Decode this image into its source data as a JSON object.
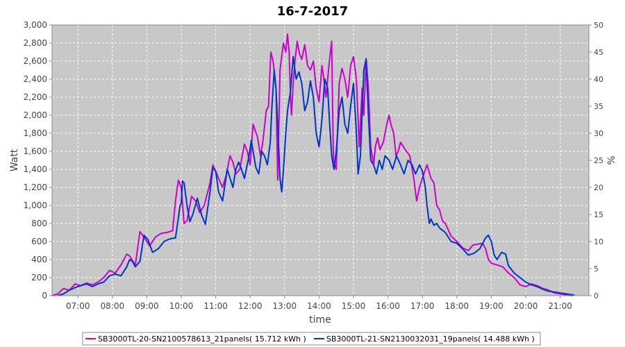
{
  "chart_data": {
    "type": "line",
    "title": "16-7-2017",
    "xlabel": "time",
    "ylabel": "Watt",
    "y2label": "%",
    "ylim": [
      0,
      3000
    ],
    "y2lim": [
      0,
      50
    ],
    "xlim": [
      "06:15",
      "21:50"
    ],
    "grid": true,
    "legend_position": "bottom",
    "x_ticks": [
      "07:00",
      "08:00",
      "09:00",
      "10:00",
      "11:00",
      "12:00",
      "13:00",
      "14:00",
      "15:00",
      "16:00",
      "17:00",
      "18:00",
      "19:00",
      "20:00",
      "21:00"
    ],
    "y_ticks": [
      "0",
      "200",
      "400",
      "600",
      "800",
      "1,000",
      "1,200",
      "1,400",
      "1,600",
      "1,800",
      "2,000",
      "2,200",
      "2,400",
      "2,600",
      "2,800",
      "3,000"
    ],
    "y2_ticks": [
      "0",
      "5",
      "10",
      "15",
      "20",
      "25",
      "30",
      "35",
      "40",
      "45",
      "50"
    ],
    "colors": {
      "plot_bg": "#c8c8c8",
      "grid": "#ffffff",
      "series1": "#cc00cc",
      "series2": "#0033cc"
    },
    "series": [
      {
        "name": "SB3000TL-20-SN2100578613_21panels( 15.712 kWh )",
        "color": "#cc00cc",
        "points": [
          [
            "06:15",
            0
          ],
          [
            "06:25",
            20
          ],
          [
            "06:35",
            80
          ],
          [
            "06:45",
            60
          ],
          [
            "06:55",
            130
          ],
          [
            "07:05",
            110
          ],
          [
            "07:15",
            140
          ],
          [
            "07:25",
            120
          ],
          [
            "07:35",
            150
          ],
          [
            "07:45",
            200
          ],
          [
            "07:55",
            280
          ],
          [
            "08:05",
            250
          ],
          [
            "08:15",
            340
          ],
          [
            "08:25",
            460
          ],
          [
            "08:30",
            440
          ],
          [
            "08:40",
            340
          ],
          [
            "08:48",
            710
          ],
          [
            "08:55",
            650
          ],
          [
            "09:05",
            550
          ],
          [
            "09:15",
            650
          ],
          [
            "09:25",
            690
          ],
          [
            "09:35",
            700
          ],
          [
            "09:45",
            720
          ],
          [
            "09:50",
            1050
          ],
          [
            "09:55",
            1280
          ],
          [
            "10:00",
            1200
          ],
          [
            "10:05",
            800
          ],
          [
            "10:10",
            830
          ],
          [
            "10:18",
            1100
          ],
          [
            "10:25",
            1050
          ],
          [
            "10:32",
            920
          ],
          [
            "10:40",
            1000
          ],
          [
            "10:50",
            1250
          ],
          [
            "10:55",
            1450
          ],
          [
            "11:00",
            1380
          ],
          [
            "11:05",
            1300
          ],
          [
            "11:12",
            1200
          ],
          [
            "11:18",
            1330
          ],
          [
            "11:25",
            1550
          ],
          [
            "11:30",
            1480
          ],
          [
            "11:35",
            1350
          ],
          [
            "11:42",
            1400
          ],
          [
            "11:50",
            1680
          ],
          [
            "11:55",
            1600
          ],
          [
            "12:00",
            1450
          ],
          [
            "12:05",
            1900
          ],
          [
            "12:08",
            1850
          ],
          [
            "12:13",
            1750
          ],
          [
            "12:18",
            1550
          ],
          [
            "12:22",
            1700
          ],
          [
            "12:28",
            2050
          ],
          [
            "12:32",
            2100
          ],
          [
            "12:36",
            2700
          ],
          [
            "12:40",
            2600
          ],
          [
            "12:45",
            2300
          ],
          [
            "12:48",
            1280
          ],
          [
            "12:52",
            2500
          ],
          [
            "12:58",
            2800
          ],
          [
            "13:02",
            2700
          ],
          [
            "13:05",
            2900
          ],
          [
            "13:08",
            2700
          ],
          [
            "13:10",
            2250
          ],
          [
            "13:12",
            2000
          ],
          [
            "13:15",
            2350
          ],
          [
            "13:18",
            2600
          ],
          [
            "13:22",
            2820
          ],
          [
            "13:26",
            2680
          ],
          [
            "13:30",
            2620
          ],
          [
            "13:35",
            2780
          ],
          [
            "13:40",
            2550
          ],
          [
            "13:45",
            2500
          ],
          [
            "13:50",
            2600
          ],
          [
            "13:55",
            2300
          ],
          [
            "14:00",
            2150
          ],
          [
            "14:05",
            2550
          ],
          [
            "14:08",
            2420
          ],
          [
            "14:12",
            2200
          ],
          [
            "14:18",
            2600
          ],
          [
            "14:22",
            2820
          ],
          [
            "14:25",
            1500
          ],
          [
            "14:30",
            1400
          ],
          [
            "14:35",
            2350
          ],
          [
            "14:40",
            2520
          ],
          [
            "14:45",
            2400
          ],
          [
            "14:50",
            2200
          ],
          [
            "14:55",
            2550
          ],
          [
            "15:00",
            2650
          ],
          [
            "15:05",
            2400
          ],
          [
            "15:10",
            1650
          ],
          [
            "15:15",
            2300
          ],
          [
            "15:18",
            2000
          ],
          [
            "15:22",
            2630
          ],
          [
            "15:26",
            2300
          ],
          [
            "15:30",
            1650
          ],
          [
            "15:35",
            1450
          ],
          [
            "15:38",
            1650
          ],
          [
            "15:42",
            1750
          ],
          [
            "15:46",
            1620
          ],
          [
            "15:52",
            1700
          ],
          [
            "15:58",
            1900
          ],
          [
            "16:02",
            2000
          ],
          [
            "16:05",
            1900
          ],
          [
            "16:10",
            1800
          ],
          [
            "16:14",
            1550
          ],
          [
            "16:18",
            1600
          ],
          [
            "16:22",
            1700
          ],
          [
            "16:30",
            1620
          ],
          [
            "16:38",
            1550
          ],
          [
            "16:45",
            1300
          ],
          [
            "16:50",
            1050
          ],
          [
            "16:55",
            1200
          ],
          [
            "17:00",
            1300
          ],
          [
            "17:08",
            1450
          ],
          [
            "17:15",
            1300
          ],
          [
            "17:20",
            1250
          ],
          [
            "17:25",
            1000
          ],
          [
            "17:30",
            950
          ],
          [
            "17:35",
            830
          ],
          [
            "17:40",
            800
          ],
          [
            "17:50",
            660
          ],
          [
            "18:00",
            600
          ],
          [
            "18:10",
            530
          ],
          [
            "18:20",
            500
          ],
          [
            "18:28",
            560
          ],
          [
            "18:35",
            570
          ],
          [
            "18:45",
            580
          ],
          [
            "18:50",
            520
          ],
          [
            "18:55",
            400
          ],
          [
            "19:00",
            360
          ],
          [
            "19:10",
            340
          ],
          [
            "19:20",
            320
          ],
          [
            "19:30",
            250
          ],
          [
            "19:40",
            200
          ],
          [
            "19:50",
            120
          ],
          [
            "20:00",
            100
          ],
          [
            "20:10",
            130
          ],
          [
            "20:20",
            110
          ],
          [
            "20:30",
            80
          ],
          [
            "20:40",
            60
          ],
          [
            "20:50",
            30
          ],
          [
            "21:00",
            20
          ],
          [
            "21:10",
            10
          ],
          [
            "21:20",
            0
          ]
        ]
      },
      {
        "name": "SB3000TL-21-SN2130032031_19panels( 14.488 kWh )",
        "color": "#0033cc",
        "points": [
          [
            "06:25",
            0
          ],
          [
            "06:35",
            20
          ],
          [
            "06:45",
            60
          ],
          [
            "06:55",
            90
          ],
          [
            "07:05",
            110
          ],
          [
            "07:15",
            130
          ],
          [
            "07:25",
            100
          ],
          [
            "07:35",
            130
          ],
          [
            "07:45",
            150
          ],
          [
            "07:55",
            220
          ],
          [
            "08:05",
            240
          ],
          [
            "08:15",
            220
          ],
          [
            "08:25",
            320
          ],
          [
            "08:30",
            400
          ],
          [
            "08:35",
            380
          ],
          [
            "08:40",
            320
          ],
          [
            "08:48",
            380
          ],
          [
            "08:55",
            670
          ],
          [
            "09:02",
            620
          ],
          [
            "09:10",
            480
          ],
          [
            "09:20",
            520
          ],
          [
            "09:30",
            600
          ],
          [
            "09:40",
            630
          ],
          [
            "09:50",
            640
          ],
          [
            "09:58",
            1000
          ],
          [
            "10:00",
            1020
          ],
          [
            "10:02",
            1270
          ],
          [
            "10:05",
            1250
          ],
          [
            "10:10",
            1000
          ],
          [
            "10:15",
            820
          ],
          [
            "10:20",
            900
          ],
          [
            "10:28",
            1080
          ],
          [
            "10:35",
            900
          ],
          [
            "10:42",
            790
          ],
          [
            "10:50",
            1150
          ],
          [
            "10:55",
            1420
          ],
          [
            "11:00",
            1380
          ],
          [
            "11:05",
            1150
          ],
          [
            "11:12",
            1050
          ],
          [
            "11:20",
            1400
          ],
          [
            "11:25",
            1300
          ],
          [
            "11:30",
            1200
          ],
          [
            "11:35",
            1400
          ],
          [
            "11:40",
            1480
          ],
          [
            "11:45",
            1400
          ],
          [
            "11:50",
            1300
          ],
          [
            "11:58",
            1550
          ],
          [
            "12:02",
            1720
          ],
          [
            "12:05",
            1600
          ],
          [
            "12:10",
            1420
          ],
          [
            "12:15",
            1350
          ],
          [
            "12:20",
            1600
          ],
          [
            "12:25",
            1550
          ],
          [
            "12:30",
            1450
          ],
          [
            "12:35",
            1700
          ],
          [
            "12:38",
            2100
          ],
          [
            "12:42",
            2500
          ],
          [
            "12:45",
            2300
          ],
          [
            "12:48",
            1900
          ],
          [
            "12:52",
            1300
          ],
          [
            "12:55",
            1150
          ],
          [
            "12:58",
            1400
          ],
          [
            "13:02",
            1800
          ],
          [
            "13:05",
            2050
          ],
          [
            "13:10",
            2250
          ],
          [
            "13:15",
            2650
          ],
          [
            "13:20",
            2400
          ],
          [
            "13:25",
            2480
          ],
          [
            "13:30",
            2350
          ],
          [
            "13:35",
            2050
          ],
          [
            "13:40",
            2150
          ],
          [
            "13:45",
            2380
          ],
          [
            "13:50",
            2200
          ],
          [
            "13:55",
            1800
          ],
          [
            "14:00",
            1650
          ],
          [
            "14:05",
            1950
          ],
          [
            "14:10",
            2400
          ],
          [
            "14:15",
            2300
          ],
          [
            "14:18",
            1950
          ],
          [
            "14:22",
            1550
          ],
          [
            "14:26",
            1400
          ],
          [
            "14:30",
            1600
          ],
          [
            "14:35",
            2050
          ],
          [
            "14:40",
            2200
          ],
          [
            "14:45",
            1900
          ],
          [
            "14:50",
            1800
          ],
          [
            "14:55",
            2100
          ],
          [
            "15:00",
            2350
          ],
          [
            "15:05",
            1800
          ],
          [
            "15:08",
            1350
          ],
          [
            "15:12",
            1550
          ],
          [
            "15:15",
            2000
          ],
          [
            "15:18",
            2500
          ],
          [
            "15:22",
            2620
          ],
          [
            "15:26",
            2000
          ],
          [
            "15:30",
            1500
          ],
          [
            "15:35",
            1450
          ],
          [
            "15:40",
            1350
          ],
          [
            "15:45",
            1500
          ],
          [
            "15:50",
            1400
          ],
          [
            "15:55",
            1550
          ],
          [
            "16:02",
            1500
          ],
          [
            "16:08",
            1400
          ],
          [
            "16:15",
            1550
          ],
          [
            "16:22",
            1450
          ],
          [
            "16:28",
            1350
          ],
          [
            "16:35",
            1500
          ],
          [
            "16:42",
            1450
          ],
          [
            "16:48",
            1350
          ],
          [
            "16:55",
            1450
          ],
          [
            "17:00",
            1380
          ],
          [
            "17:05",
            1200
          ],
          [
            "17:08",
            1000
          ],
          [
            "17:12",
            800
          ],
          [
            "17:15",
            850
          ],
          [
            "17:20",
            780
          ],
          [
            "17:25",
            800
          ],
          [
            "17:30",
            750
          ],
          [
            "17:40",
            700
          ],
          [
            "17:50",
            600
          ],
          [
            "18:00",
            580
          ],
          [
            "18:10",
            520
          ],
          [
            "18:20",
            450
          ],
          [
            "18:30",
            470
          ],
          [
            "18:40",
            520
          ],
          [
            "18:50",
            640
          ],
          [
            "18:55",
            670
          ],
          [
            "19:00",
            600
          ],
          [
            "19:05",
            450
          ],
          [
            "19:10",
            400
          ],
          [
            "19:18",
            480
          ],
          [
            "19:25",
            460
          ],
          [
            "19:30",
            330
          ],
          [
            "19:40",
            250
          ],
          [
            "19:50",
            200
          ],
          [
            "20:00",
            150
          ],
          [
            "20:10",
            120
          ],
          [
            "20:20",
            100
          ],
          [
            "20:30",
            70
          ],
          [
            "20:40",
            50
          ],
          [
            "20:50",
            40
          ],
          [
            "21:00",
            30
          ],
          [
            "21:10",
            20
          ],
          [
            "21:25",
            5
          ]
        ]
      }
    ]
  }
}
